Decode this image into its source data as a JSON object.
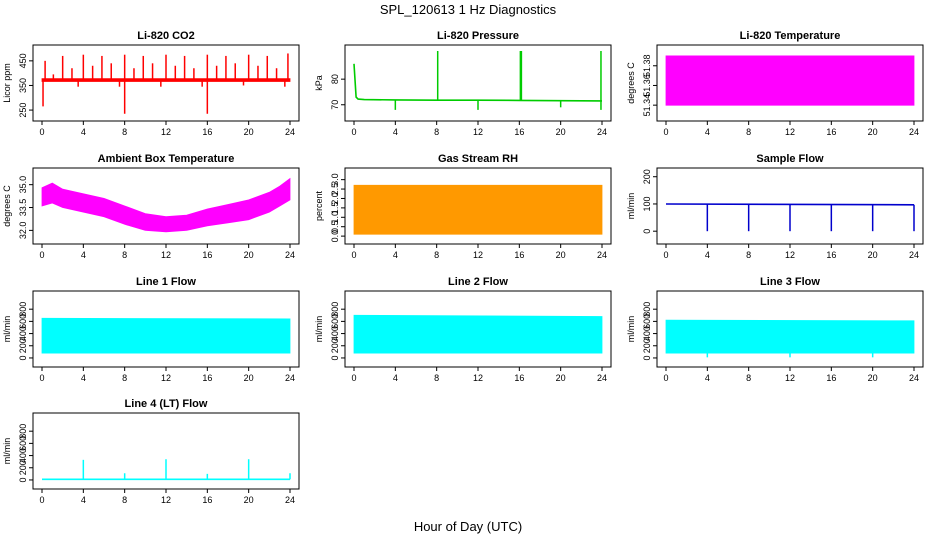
{
  "figure": {
    "title": "SPL_120613  1 Hz Diagnostics",
    "xlabel": "Hour of Day (UTC)"
  },
  "chart_data": [
    {
      "id": "co2",
      "type": "line",
      "title": "Li-820 CO2",
      "ylabel": "Licor ppm",
      "color": "#ff0000",
      "xlim": [
        0,
        24
      ],
      "ylim": [
        230,
        490
      ],
      "xticks": [
        0,
        4,
        8,
        12,
        16,
        20,
        24
      ],
      "yticks": [
        250,
        350,
        450
      ],
      "series": [
        {
          "kind": "band",
          "x": [
            0,
            24
          ],
          "low": [
            366,
            366
          ],
          "high": [
            378,
            378
          ]
        },
        {
          "kind": "spikes",
          "x": [
            0.3,
            1.1,
            2.0,
            2.9,
            4.0,
            4.9,
            5.8,
            6.7,
            8.0,
            8.9,
            9.8,
            10.7,
            12.0,
            12.9,
            13.8,
            14.7,
            16.0,
            16.9,
            17.8,
            18.7,
            20.0,
            20.9,
            21.8,
            22.7,
            23.8
          ],
          "y": [
            450,
            395,
            470,
            420,
            475,
            430,
            470,
            440,
            475,
            420,
            470,
            440,
            475,
            430,
            470,
            420,
            475,
            430,
            470,
            440,
            475,
            430,
            470,
            420,
            480
          ]
        },
        {
          "kind": "spikes",
          "x": [
            0.1,
            3.5,
            7.5,
            8.0,
            11.5,
            15.5,
            16.0,
            19.5,
            23.5
          ],
          "y": [
            265,
            345,
            345,
            235,
            345,
            345,
            235,
            350,
            345
          ]
        }
      ]
    },
    {
      "id": "pressure",
      "type": "line",
      "title": "Li-820 Pressure",
      "ylabel": "kPa",
      "color": "#00cc00",
      "xlim": [
        0,
        24
      ],
      "ylim": [
        66,
        91
      ],
      "xticks": [
        0,
        4,
        8,
        12,
        16,
        20,
        24
      ],
      "yticks": [
        70,
        80
      ],
      "series": [
        {
          "kind": "line",
          "x": [
            0,
            0.2,
            0.4,
            1,
            4,
            8,
            12,
            16,
            20,
            24
          ],
          "y": [
            86,
            73,
            72.2,
            72,
            71.9,
            71.8,
            71.8,
            71.7,
            71.6,
            71.5
          ]
        },
        {
          "kind": "spikes",
          "x": [
            8.1,
            16.1,
            16.2,
            23.9
          ],
          "y": [
            91,
            91,
            91,
            91
          ]
        },
        {
          "kind": "spikes",
          "x": [
            4.0,
            12.0,
            20.0,
            23.9
          ],
          "y": [
            68,
            68,
            69,
            68
          ]
        }
      ]
    },
    {
      "id": "licor_temp",
      "type": "line",
      "title": "Li-820 Temperature",
      "ylabel": "degrees C",
      "color": "#ff00ff",
      "xlim": [
        0,
        24
      ],
      "ylim": [
        51.33,
        51.395
      ],
      "xticks": [
        0,
        4,
        8,
        12,
        16,
        20,
        24
      ],
      "yticks": [
        51.34,
        51.36,
        51.38
      ],
      "series": [
        {
          "kind": "band",
          "x": [
            0,
            24
          ],
          "low": [
            51.34,
            51.34
          ],
          "high": [
            51.39,
            51.39
          ]
        }
      ]
    },
    {
      "id": "box_temp",
      "type": "line",
      "title": "Ambient Box Temperature",
      "ylabel": "degrees C",
      "color": "#ff00ff",
      "xlim": [
        0,
        24
      ],
      "ylim": [
        31.5,
        35.7
      ],
      "xticks": [
        0,
        4,
        8,
        12,
        16,
        20,
        24
      ],
      "yticks": [
        32.0,
        33.5,
        35.0
      ],
      "series": [
        {
          "kind": "band",
          "x": [
            0,
            1,
            2,
            4,
            6,
            8,
            10,
            12,
            14,
            16,
            18,
            20,
            22,
            23,
            24
          ],
          "low": [
            33.6,
            33.8,
            33.5,
            33.2,
            32.9,
            32.4,
            32.0,
            31.9,
            32.0,
            32.3,
            32.5,
            32.7,
            33.2,
            33.6,
            34.0
          ],
          "high": [
            34.8,
            35.1,
            34.7,
            34.4,
            34.1,
            33.6,
            33.1,
            32.9,
            33.0,
            33.4,
            33.7,
            34.0,
            34.5,
            34.9,
            35.4
          ]
        }
      ]
    },
    {
      "id": "rh",
      "type": "line",
      "title": "Gas Stream RH",
      "ylabel": "percent",
      "color": "#ff9900",
      "xlim": [
        0,
        24
      ],
      "ylim": [
        -0.1,
        3.3
      ],
      "xticks": [
        0,
        4,
        8,
        12,
        16,
        20,
        24
      ],
      "yticks": [
        0.0,
        0.5,
        1.0,
        1.5,
        2.0,
        2.5,
        3.0
      ],
      "series": [
        {
          "kind": "band",
          "x": [
            0,
            24
          ],
          "low": [
            0.1,
            0.1
          ],
          "high": [
            2.7,
            2.7
          ]
        }
      ]
    },
    {
      "id": "sample_flow",
      "type": "line",
      "title": "Sample Flow",
      "ylabel": "ml/min",
      "color": "#0000cc",
      "xlim": [
        0,
        24
      ],
      "ylim": [
        -25,
        210
      ],
      "xticks": [
        0,
        4,
        8,
        12,
        16,
        20,
        24
      ],
      "yticks": [
        0,
        100,
        200
      ],
      "series": [
        {
          "kind": "line",
          "x": [
            0,
            24
          ],
          "y": [
            100,
            97
          ]
        },
        {
          "kind": "spikes",
          "x": [
            4.0,
            8.0,
            12.0,
            16.0,
            20.0,
            24.0
          ],
          "y": [
            0,
            0,
            0,
            0,
            0,
            0
          ]
        }
      ]
    },
    {
      "id": "line1",
      "type": "area",
      "title": "Line 1 Flow",
      "ylabel": "ml/min",
      "color": "#00ffff",
      "xlim": [
        0,
        24
      ],
      "ylim": [
        -50,
        1000
      ],
      "xticks": [
        0,
        4,
        8,
        12,
        16,
        20,
        24
      ],
      "yticks": [
        0,
        200,
        400,
        600,
        800
      ],
      "series": [
        {
          "kind": "band",
          "x": [
            0,
            24
          ],
          "low": [
            80,
            80
          ],
          "high": [
            650,
            640
          ]
        },
        {
          "kind": "spikes",
          "x": [
            3.9,
            11.9,
            19.9
          ],
          "y": [
            120,
            120,
            120
          ]
        }
      ]
    },
    {
      "id": "line2",
      "type": "area",
      "title": "Line 2 Flow",
      "ylabel": "ml/min",
      "color": "#00ffff",
      "xlim": [
        0,
        24
      ],
      "ylim": [
        -50,
        1000
      ],
      "xticks": [
        0,
        4,
        8,
        12,
        16,
        20,
        24
      ],
      "yticks": [
        0,
        200,
        400,
        600,
        800
      ],
      "series": [
        {
          "kind": "band",
          "x": [
            0,
            24
          ],
          "low": [
            80,
            80
          ],
          "high": [
            700,
            680
          ]
        },
        {
          "kind": "spikes",
          "x": [
            4.0,
            8.0,
            12.0,
            16.0,
            20.0
          ],
          "y": [
            100,
            100,
            100,
            100,
            100
          ]
        }
      ]
    },
    {
      "id": "line3",
      "type": "area",
      "title": "Line 3 Flow",
      "ylabel": "ml/min",
      "color": "#00ffff",
      "xlim": [
        0,
        24
      ],
      "ylim": [
        -50,
        1000
      ],
      "xticks": [
        0,
        4,
        8,
        12,
        16,
        20,
        24
      ],
      "yticks": [
        0,
        200,
        400,
        600,
        800
      ],
      "series": [
        {
          "kind": "band",
          "x": [
            0,
            24
          ],
          "low": [
            80,
            80
          ],
          "high": [
            620,
            610
          ]
        },
        {
          "kind": "spikes",
          "x": [
            4.0,
            12.0,
            20.0
          ],
          "y": [
            10,
            10,
            10
          ]
        }
      ]
    },
    {
      "id": "line4",
      "type": "line",
      "title": "Line 4 (LT) Flow",
      "ylabel": "ml/min",
      "color": "#00ffff",
      "xlim": [
        0,
        24
      ],
      "ylim": [
        -50,
        1000
      ],
      "xticks": [
        0,
        4,
        8,
        12,
        16,
        20,
        24
      ],
      "yticks": [
        0,
        200,
        400,
        600,
        800
      ],
      "series": [
        {
          "kind": "line",
          "x": [
            0,
            24
          ],
          "y": [
            10,
            10
          ]
        },
        {
          "kind": "spikes",
          "x": [
            4.0,
            8.0,
            12.0,
            16.0,
            20.0,
            24.0
          ],
          "y": [
            330,
            110,
            340,
            100,
            340,
            110
          ]
        }
      ]
    }
  ]
}
